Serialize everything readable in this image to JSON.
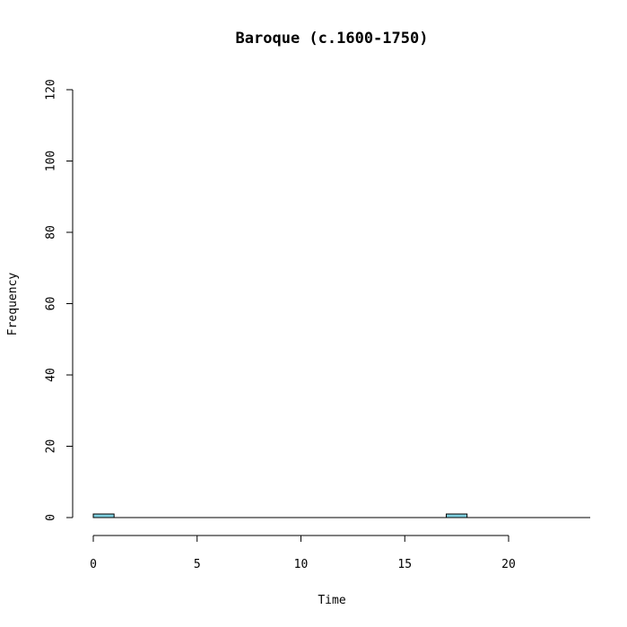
{
  "chart_data": {
    "type": "bar",
    "title": "Baroque (c.1600-1750)",
    "xlabel": "Time",
    "ylabel": "Frequency",
    "xlim": [
      0,
      24
    ],
    "ylim": [
      0,
      120
    ],
    "x_ticks": [
      0,
      5,
      10,
      15,
      20
    ],
    "y_ticks": [
      0,
      20,
      40,
      60,
      80,
      100,
      120
    ],
    "bin_width": 1,
    "bins": [
      {
        "x0": 0,
        "x1": 1,
        "count": 1
      },
      {
        "x0": 17,
        "x1": 18,
        "count": 1
      }
    ],
    "bar_color": "#7fd0e0",
    "grid": false
  }
}
